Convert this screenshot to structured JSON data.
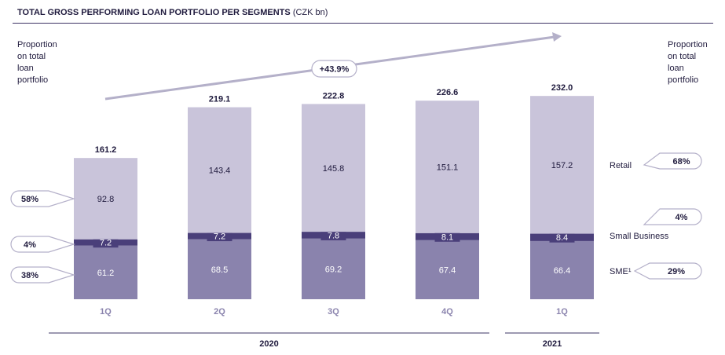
{
  "header": {
    "title": "TOTAL GROSS PERFORMING LOAN PORTFOLIO PER SEGMENTS",
    "unit": "(CZK bn)"
  },
  "left_note": [
    "Proportion",
    "on total",
    "loan",
    "portfolio"
  ],
  "right_note": [
    "Proportion",
    "on total",
    "loan",
    "portfolio"
  ],
  "colors": {
    "retail": "#c9c4da",
    "small_business": "#4a3f7a",
    "sme": "#8a83ad",
    "text_dark": "#1f1a3d",
    "axis": "#3d3466",
    "arrow": "#b4b0c9",
    "tick_label": "#8a83ad"
  },
  "chart_data": {
    "type": "bar",
    "stacked": true,
    "categories": [
      "1Q",
      "2Q",
      "3Q",
      "4Q",
      "1Q"
    ],
    "groups": [
      {
        "label": "2020",
        "categories": [
          0,
          1,
          2,
          3
        ]
      },
      {
        "label": "2021",
        "categories": [
          4
        ]
      }
    ],
    "series": [
      {
        "name": "SME¹",
        "values": [
          61.2,
          68.5,
          69.2,
          67.4,
          66.4
        ]
      },
      {
        "name": "Small Business",
        "values": [
          7.2,
          7.2,
          7.8,
          8.1,
          8.4
        ]
      },
      {
        "name": "Retail",
        "values": [
          92.8,
          143.4,
          145.8,
          151.1,
          157.2
        ]
      }
    ],
    "totals": [
      161.2,
      219.1,
      222.8,
      226.6,
      232.0
    ],
    "growth_annotation": "+43.9%",
    "share_left": {
      "Retail": "58%",
      "Small Business": "4%",
      "SME¹": "38%"
    },
    "share_right": {
      "Retail": "68%",
      "Small Business": "4%",
      "SME¹": "29%"
    },
    "ylim": [
      0,
      240
    ]
  }
}
